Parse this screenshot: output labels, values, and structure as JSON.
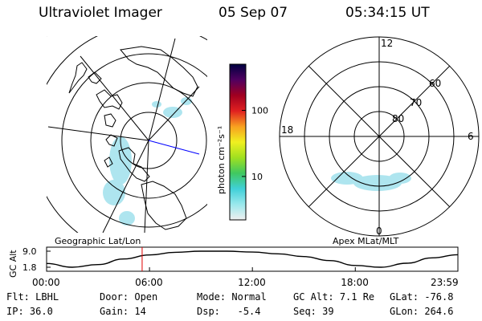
{
  "header": {
    "title": "Ultraviolet Imager",
    "date": "05 Sep 07",
    "time": "05:34:15 UT"
  },
  "panels": {
    "left_label": "Geographic Lat/Lon",
    "right_label": "Apex MLat/MLT",
    "colorbar_unit": "photon cm⁻²s⁻¹",
    "colorbar_ticks": [
      {
        "label": "100",
        "value": 100
      },
      {
        "label": "10",
        "value": 10
      }
    ],
    "polar_clock_labels": [
      {
        "label": "12",
        "angle": 0
      },
      {
        "label": "6",
        "angle": 90
      },
      {
        "label": "0",
        "angle": 180
      },
      {
        "label": "18",
        "angle": 270
      }
    ],
    "polar_lat_labels": [
      "60",
      "70",
      "80"
    ]
  },
  "colors": {
    "aurora": "#a6e3ee",
    "colorbar": [
      "#f0f0f0",
      "#9ae8ec",
      "#40d0d8",
      "#40c860",
      "#a0e020",
      "#f0f020",
      "#f8a020",
      "#e02020",
      "#a00020",
      "#500060",
      "#000040"
    ],
    "marker": "#e00000",
    "blue_line": "#0000ff"
  },
  "chart_data": {
    "type": "line",
    "ylabel": "GC Alt",
    "ytick_labels": [
      "9.0",
      "1.8"
    ],
    "ylim": [
      1.8,
      9.0
    ],
    "xlim": [
      0,
      23.983
    ],
    "xtick_labels": [
      "00:00",
      "06:00",
      "12:00",
      "18:00",
      "23:59"
    ],
    "x": [
      0,
      1.5,
      3,
      4.5,
      6,
      7.5,
      9,
      10.5,
      12,
      13.5,
      15,
      16.5,
      18,
      19.5,
      21,
      22.5,
      23.983
    ],
    "y": [
      3.5,
      1.8,
      3.0,
      5.5,
      7.3,
      8.5,
      9.0,
      9.0,
      8.6,
      7.8,
      6.6,
      4.8,
      2.6,
      1.8,
      3.6,
      6.0,
      7.4
    ],
    "marker_x": 5.571
  },
  "info": {
    "row1": [
      {
        "label": "Flt:",
        "value": "LBHL"
      },
      {
        "label": "Door:",
        "value": "Open"
      },
      {
        "label": "Mode:",
        "value": "Normal"
      },
      {
        "label": "GC Alt:",
        "value": "7.1 Re"
      },
      {
        "label": "GLat:",
        "value": "-76.8"
      }
    ],
    "row2": [
      {
        "label": "IP:",
        "value": "36.0"
      },
      {
        "label": "Gain:",
        "value": "14"
      },
      {
        "label": "Dsp:",
        "value": "-5.4"
      },
      {
        "label": "Seq:",
        "value": "39"
      },
      {
        "label": "GLon:",
        "value": "264.6"
      }
    ]
  }
}
